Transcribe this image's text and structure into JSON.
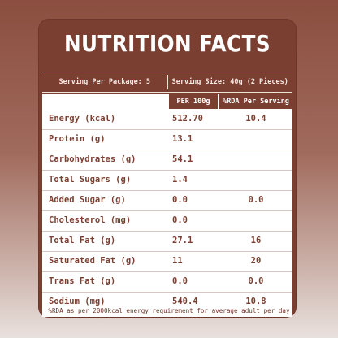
{
  "title": "NUTRITION FACTS",
  "serving": {
    "per_package": "Serving Per Package: 5",
    "size": "Serving Size: 40g (2 Pieces)"
  },
  "columns": {
    "per100": "PER 100g",
    "rda": "%RDA Per Serving"
  },
  "rows": [
    {
      "label": "Energy (kcal)",
      "per100": "512.70",
      "rda": "10.4"
    },
    {
      "label": "Protein (g)",
      "per100": "13.1",
      "rda": ""
    },
    {
      "label": "Carbohydrates (g)",
      "per100": "54.1",
      "rda": ""
    },
    {
      "label": "Total Sugars (g)",
      "per100": "1.4",
      "rda": ""
    },
    {
      "label": "Added Sugar (g)",
      "per100": "0.0",
      "rda": "0.0"
    },
    {
      "label": "Cholesterol (mg)",
      "per100": "0.0",
      "rda": ""
    },
    {
      "label": "Total Fat (g)",
      "per100": "27.1",
      "rda": "16"
    },
    {
      "label": "Saturated Fat (g)",
      "per100": "11",
      "rda": "20"
    },
    {
      "label": "Trans Fat (g)",
      "per100": "0.0",
      "rda": "0.0"
    },
    {
      "label": "Sodium (mg)",
      "per100": "540.4",
      "rda": "10.8"
    }
  ],
  "footnote": "%RDA as per 2000kcal energy requirement for average adult per day",
  "colors": {
    "panel": "#7b3f31",
    "text": "#7b3f31"
  }
}
